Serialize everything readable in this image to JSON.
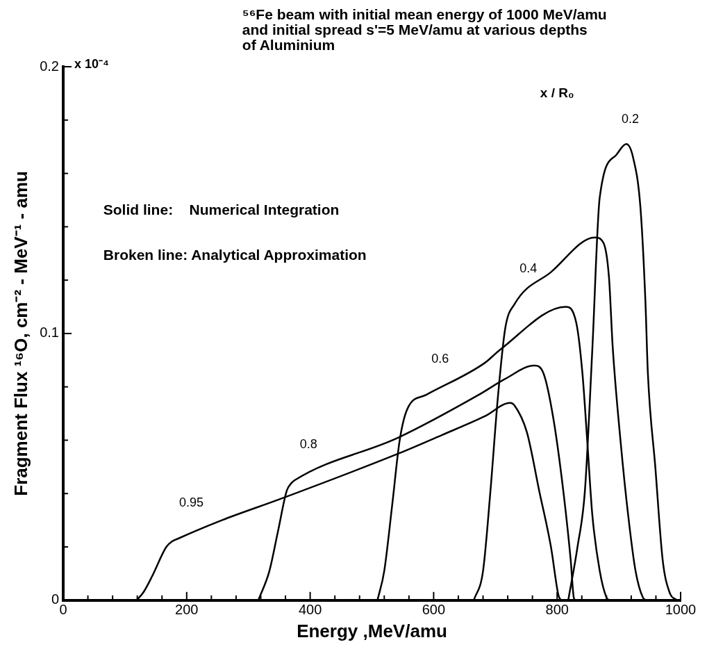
{
  "chart_data": {
    "type": "line",
    "title": "⁵⁶Fe beam with initial mean energy of 1000 MeV/amu\nand initial spread s'=5 MeV/amu at various depths\nof Aluminium",
    "xlabel": "Energy ,MeV/amu",
    "ylabel": "Fragment Flux ¹⁶O, cm⁻² - MeV⁻¹ - amu",
    "legend_title": "x / R₀",
    "annotations": [
      "x 10⁻⁴",
      "Solid line:    Numerical Integration",
      "Broken line: Analytical Approximation"
    ],
    "series": [
      {
        "name": "0.2",
        "color": "#000000",
        "x": [
          818,
          833,
          845,
          857,
          869,
          896,
          912,
          923,
          935,
          943,
          947,
          959,
          971,
          982,
          994
        ],
        "values": [
          0,
          0.02,
          0.041,
          0.094,
          0.151,
          0.167,
          0.171,
          0.166,
          0.147,
          0.112,
          0.085,
          0.05,
          0.015,
          0.003,
          0
        ]
      },
      {
        "name": "0.4",
        "color": "#000000",
        "x": [
          665,
          680,
          692,
          704,
          716,
          731,
          790,
          861,
          875,
          884,
          890,
          903,
          915,
          927,
          939,
          945
        ],
        "values": [
          0,
          0.011,
          0.041,
          0.076,
          0.102,
          0.111,
          0.123,
          0.136,
          0.134,
          0.121,
          0.095,
          0.059,
          0.032,
          0.011,
          0.001,
          0
        ]
      },
      {
        "name": "0.6",
        "color": "#000000",
        "x": [
          509,
          520,
          533,
          545,
          558,
          588,
          683,
          708,
          814,
          831,
          841,
          849,
          857,
          869,
          880,
          885
        ],
        "values": [
          0,
          0.011,
          0.036,
          0.06,
          0.072,
          0.077,
          0.089,
          0.094,
          0.11,
          0.104,
          0.085,
          0.059,
          0.032,
          0.011,
          0.001,
          0
        ]
      },
      {
        "name": "0.8",
        "color": "#000000",
        "x": [
          316,
          334,
          348,
          362,
          370,
          375,
          543,
          673,
          716,
          763,
          778,
          794,
          810,
          822,
          827,
          830
        ],
        "values": [
          0,
          0.011,
          0.026,
          0.041,
          0.044,
          0.045,
          0.061,
          0.077,
          0.083,
          0.088,
          0.085,
          0.068,
          0.041,
          0.015,
          0.001,
          0
        ]
      },
      {
        "name": "0.95",
        "color": "#000000",
        "x": [
          119,
          130,
          144,
          167,
          176,
          185,
          257,
          352,
          543,
          614,
          683,
          724,
          731,
          751,
          771,
          790,
          802,
          806
        ],
        "values": [
          0,
          0.003,
          0.009,
          0.02,
          0.022,
          0.023,
          0.03,
          0.038,
          0.055,
          0.062,
          0.069,
          0.074,
          0.073,
          0.063,
          0.041,
          0.02,
          0.002,
          0
        ]
      }
    ],
    "xlim": [
      0,
      1000
    ],
    "xticks": [
      0,
      {
        "value": 40,
        "label": null
      },
      {
        "value": 80,
        "label": null
      },
      {
        "value": 120,
        "label": null
      },
      {
        "value": 160,
        "label": null
      },
      200,
      {
        "value": 240,
        "label": null
      },
      {
        "value": 280,
        "label": null
      },
      {
        "value": 320,
        "label": null
      },
      {
        "value": 360,
        "label": null
      },
      400,
      {
        "value": 440,
        "label": null
      },
      {
        "value": 480,
        "label": null
      },
      {
        "value": 520,
        "label": null
      },
      {
        "value": 560,
        "label": null
      },
      600,
      {
        "value": 640,
        "label": null
      },
      {
        "value": 680,
        "label": null
      },
      {
        "value": 720,
        "label": null
      },
      {
        "value": 760,
        "label": null
      },
      800,
      {
        "value": 840,
        "label": null
      },
      {
        "value": 880,
        "label": null
      },
      {
        "value": 920,
        "label": null
      },
      {
        "value": 960,
        "label": null
      },
      1000
    ],
    "ylim": [
      0,
      0.2
    ],
    "yticks": [
      0,
      {
        "value": 0.02,
        "label": null
      },
      {
        "value": 0.04,
        "label": null
      },
      {
        "value": 0.06,
        "label": null
      },
      {
        "value": 0.08,
        "label": null
      },
      0.1,
      {
        "value": 0.12,
        "label": null
      },
      {
        "value": 0.14,
        "label": null
      },
      {
        "value": 0.16,
        "label": null
      },
      {
        "value": 0.18,
        "label": null
      },
      0.2
    ],
    "legend": false,
    "marker": "none",
    "line_style": "solid"
  }
}
